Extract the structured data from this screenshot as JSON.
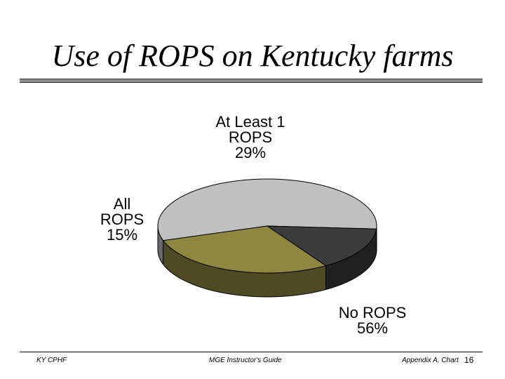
{
  "slide": {
    "title": "Use of ROPS on Kentucky farms"
  },
  "chart_data": {
    "type": "pie",
    "style": "3d",
    "title": "",
    "slices": [
      {
        "label_lines": [
          "No ROPS",
          "56%"
        ],
        "value": 56,
        "color": "#c0c0c0"
      },
      {
        "label_lines": [
          "All",
          "ROPS",
          "15%"
        ],
        "value": 15,
        "color": "#3c3c3c"
      },
      {
        "label_lines": [
          "At Least 1",
          "ROPS",
          "29%"
        ],
        "value": 29,
        "color": "#8f8740"
      }
    ],
    "legend": "none"
  },
  "footer": {
    "left": "KY CPHF",
    "center": "MGE Instructor's Guide",
    "right": "Appendix A, Chart",
    "page": "16"
  }
}
